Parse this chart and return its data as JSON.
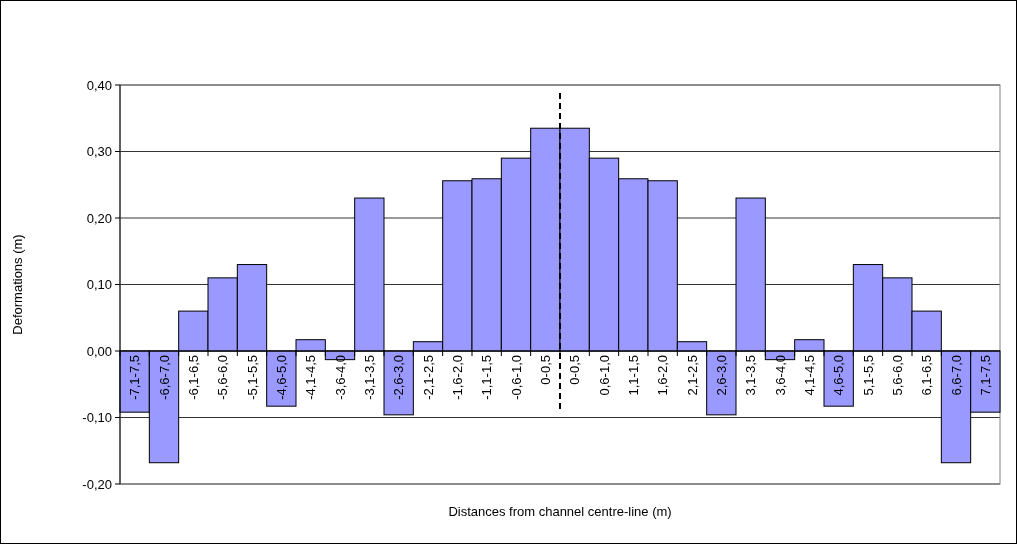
{
  "chart_data": {
    "type": "bar",
    "xlabel": "Distances from channel centre-line (m)",
    "ylabel": "Deformations (m)",
    "categories": [
      "-7,1-7,5",
      "-6,6-7,0",
      "-6,1-6,5",
      "-5,6-6,0",
      "-5,1-5,5",
      "-4,6-5,0",
      "-4,1-4,5",
      "-3,6-4,0",
      "-3,1-3,5",
      "-2,6-3,0",
      "-2,1-2,5",
      "-1,6-2,0",
      "-1,1-1,5",
      "-0,6-1,0",
      "0-0,5",
      "0-0,5",
      "0,6-1,0",
      "1,1-1,5",
      "1,6-2,0",
      "2,1-2,5",
      "2,6-3,0",
      "3,1-3,5",
      "3,6-4,0",
      "4,1-4,5",
      "4,6-5,0",
      "5,1-5,5",
      "5,6-6,0",
      "6,1-6,5",
      "6,6-7,0",
      "7,1-7,5"
    ],
    "values": [
      -0.092,
      -0.168,
      0.06,
      0.11,
      0.13,
      -0.083,
      0.017,
      -0.013,
      0.23,
      -0.096,
      0.014,
      0.256,
      0.259,
      0.29,
      0.335,
      0.335,
      0.29,
      0.259,
      0.256,
      0.014,
      -0.096,
      0.23,
      -0.013,
      0.017,
      -0.083,
      0.13,
      0.11,
      0.06,
      -0.168,
      -0.092
    ],
    "color": "#9999ff",
    "ylim": [
      -0.2,
      0.4
    ],
    "yticks": [
      {
        "value": -0.2,
        "label": "-0,20"
      },
      {
        "value": -0.1,
        "label": "-0,10"
      },
      {
        "value": 0,
        "label": "0,00"
      },
      {
        "value": 0.1,
        "label": "0,10"
      },
      {
        "value": 0.2,
        "label": "0,20"
      },
      {
        "value": 0.3,
        "label": "0,30"
      },
      {
        "value": 0.4,
        "label": "0,40"
      }
    ],
    "grid": "y",
    "ref_lines": [
      {
        "axis": "x",
        "value": "0-0,5",
        "line_style": "dashed",
        "color": "#000000"
      }
    ]
  }
}
